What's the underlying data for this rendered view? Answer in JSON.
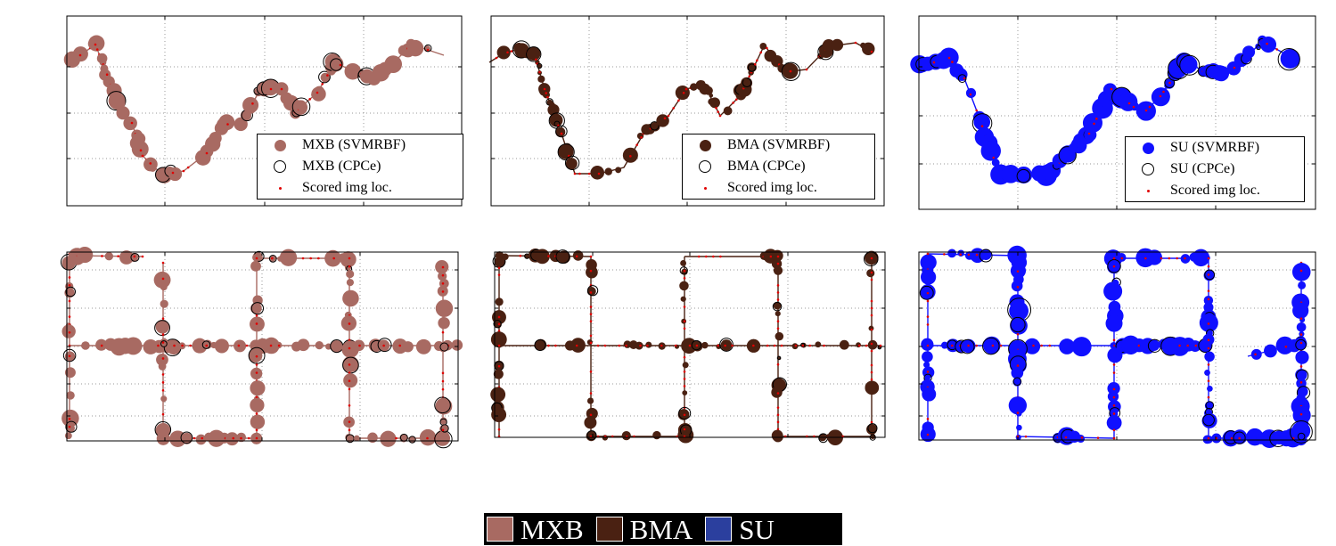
{
  "colors": {
    "MXB": "#a86a62",
    "BMA": "#4a2112",
    "SU": "#1010ff",
    "scored": "#e00000"
  },
  "chart_data": [
    {
      "type": "scatter",
      "panel": "top-left",
      "species": "MXB",
      "legend": [
        "MXB (SVMRBF)",
        "MXB (CPCe)",
        "Scored img loc."
      ],
      "grid": true,
      "legend_position": "bottom-right"
    },
    {
      "type": "scatter",
      "panel": "top-middle",
      "species": "BMA",
      "legend": [
        "BMA (SVMRBF)",
        "BMA (CPCe)",
        "Scored img loc."
      ],
      "grid": true,
      "legend_position": "bottom-right"
    },
    {
      "type": "scatter",
      "panel": "top-right",
      "species": "SU",
      "legend": [
        "SU (SVMRBF)",
        "SU (CPCe)",
        "Scored img loc."
      ],
      "grid": true,
      "legend_position": "bottom-right"
    },
    {
      "type": "scatter",
      "panel": "bottom-left",
      "species": "MXB",
      "grid": true
    },
    {
      "type": "scatter",
      "panel": "bottom-middle",
      "species": "BMA",
      "grid": true
    },
    {
      "type": "scatter",
      "panel": "bottom-right",
      "species": "SU",
      "grid": true
    }
  ],
  "bottom_legend": [
    "MXB",
    "BMA",
    "SU"
  ]
}
